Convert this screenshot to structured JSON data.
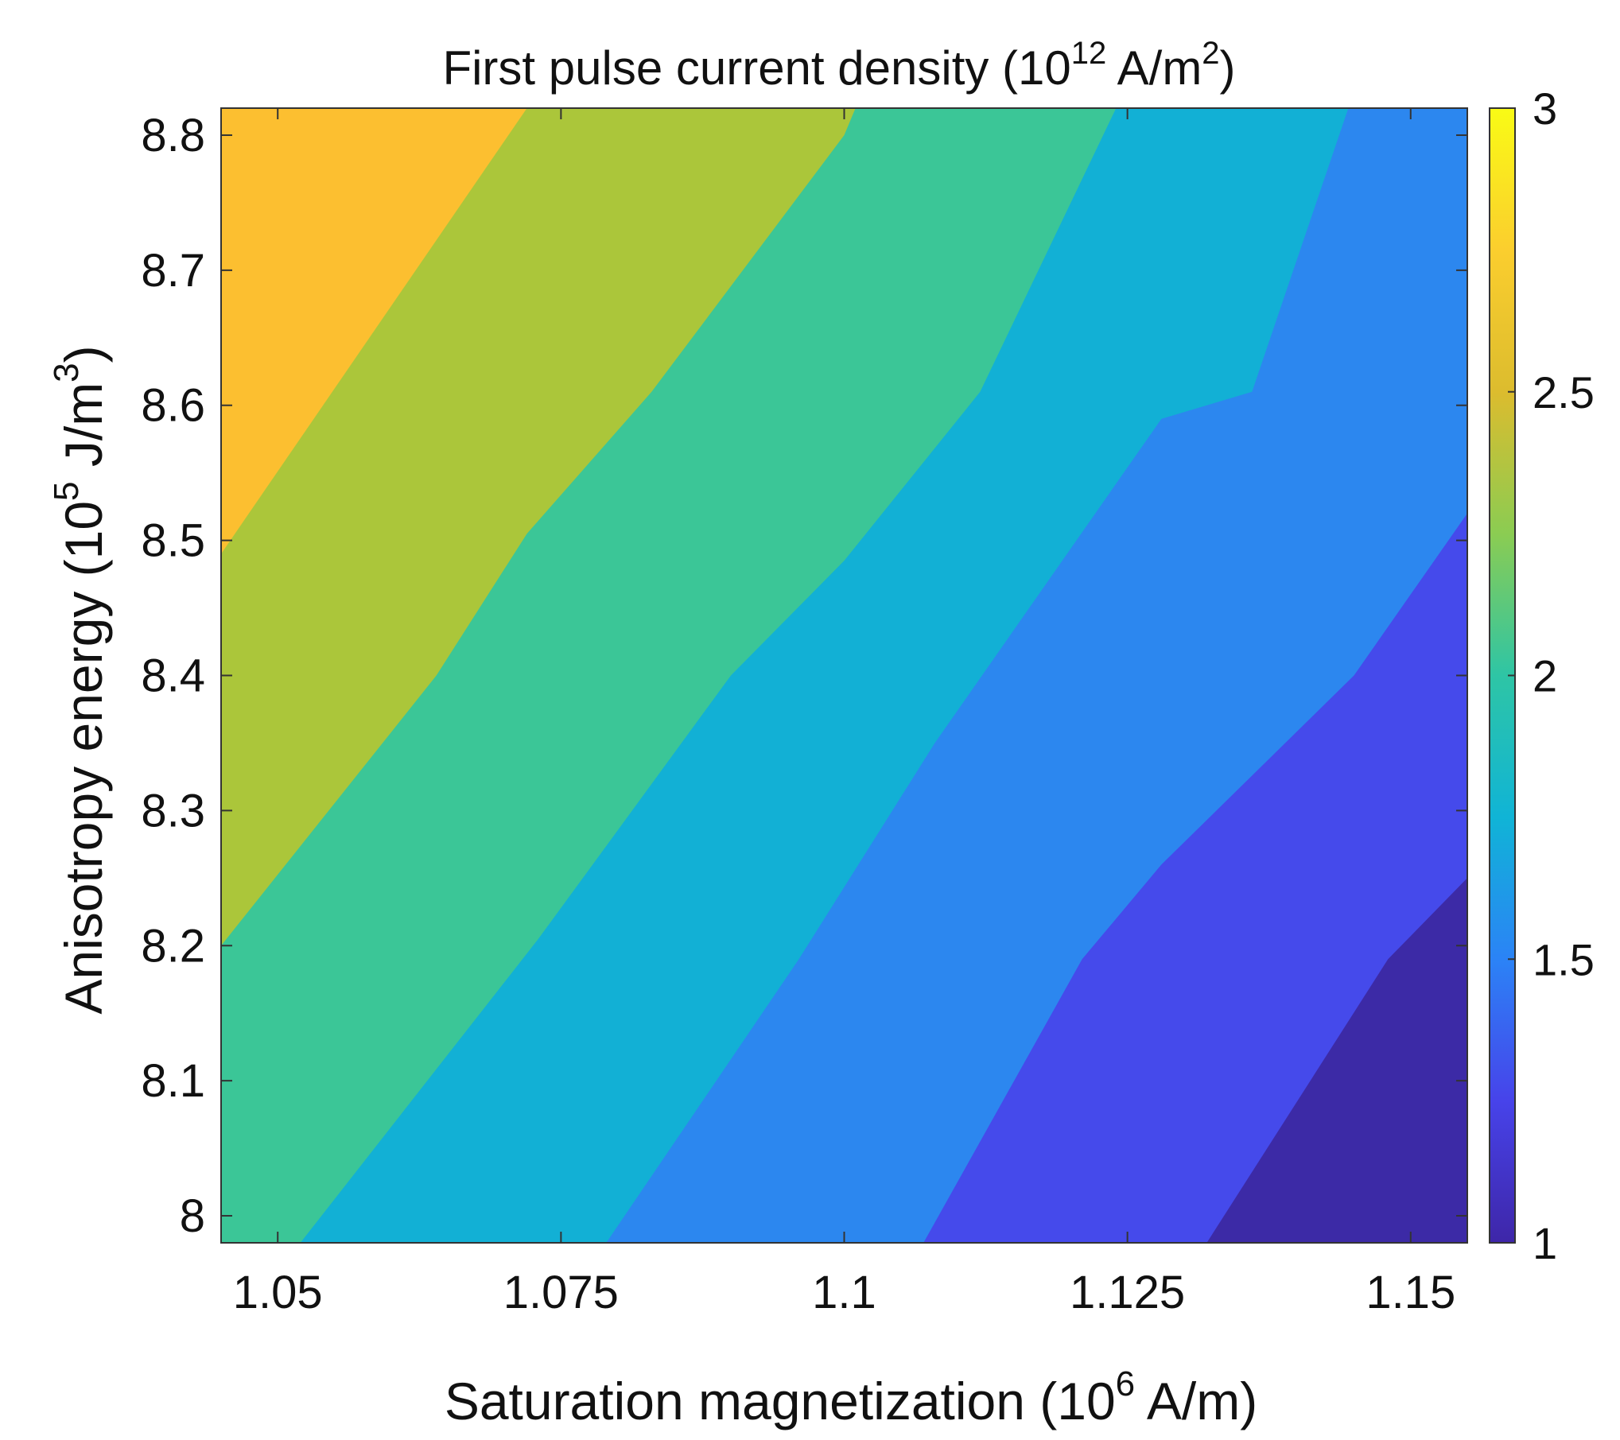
{
  "chart_data": {
    "type": "filled-contour",
    "title": {
      "main": "First pulse current density (10",
      "sup": "12",
      "mid": " A/m",
      "sup2": "2",
      "end": ")"
    },
    "xlabel": {
      "main": "Saturation magnetization (10",
      "sup": "6",
      "end": " A/m)"
    },
    "ylabel": {
      "main": "Anisotropy energy (10",
      "sup": "5",
      "mid": " J/m",
      "sup2": "3",
      "end": ")"
    },
    "xlim": [
      1.045,
      1.155
    ],
    "ylim": [
      7.98,
      8.82
    ],
    "x_ticks": [
      {
        "value": 1.05,
        "label": "1.05"
      },
      {
        "value": 1.075,
        "label": "1.075"
      },
      {
        "value": 1.1,
        "label": "1.1"
      },
      {
        "value": 1.125,
        "label": "1.125"
      },
      {
        "value": 1.15,
        "label": "1.15"
      }
    ],
    "y_ticks": [
      {
        "value": 8.0,
        "label": "8"
      },
      {
        "value": 8.1,
        "label": "8.1"
      },
      {
        "value": 8.2,
        "label": "8.2"
      },
      {
        "value": 8.3,
        "label": "8.3"
      },
      {
        "value": 8.4,
        "label": "8.4"
      },
      {
        "value": 8.5,
        "label": "8.5"
      },
      {
        "value": 8.6,
        "label": "8.6"
      },
      {
        "value": 8.7,
        "label": "8.7"
      },
      {
        "value": 8.8,
        "label": "8.8"
      }
    ],
    "colorbar": {
      "range": [
        1,
        3
      ],
      "ticks": [
        {
          "value": 1,
          "label": "1"
        },
        {
          "value": 1.5,
          "label": "1.5"
        },
        {
          "value": 2,
          "label": "2"
        },
        {
          "value": 2.5,
          "label": "2.5"
        },
        {
          "value": 3,
          "label": "3"
        }
      ],
      "colormap": [
        "#3e26a8",
        "#4743ea",
        "#2b83f6",
        "#10b4d6",
        "#2ec5a5",
        "#8bcc52",
        "#dcbc2e",
        "#fbce2e",
        "#f9fb15"
      ]
    },
    "levels": [
      {
        "range": [
          2.5,
          2.75
        ],
        "color": "#fcbf30"
      },
      {
        "range": [
          2.25,
          2.5
        ],
        "color": "#abc63a"
      },
      {
        "range": [
          2.0,
          2.25
        ],
        "color": "#3bc697"
      },
      {
        "range": [
          1.75,
          2.0
        ],
        "color": "#12b0d5"
      },
      {
        "range": [
          1.5,
          1.75
        ],
        "color": "#2c87ef"
      },
      {
        "range": [
          1.25,
          1.5
        ],
        "color": "#454aeb"
      },
      {
        "range": [
          1.0,
          1.25
        ],
        "color": "#3c2aa6"
      }
    ],
    "contour_lines": [
      {
        "level": 2.5,
        "points": [
          [
            1.045,
            8.49
          ],
          [
            1.072,
            8.82
          ]
        ]
      },
      {
        "level": 2.25,
        "points": [
          [
            1.045,
            8.2
          ],
          [
            1.064,
            8.4
          ],
          [
            1.072,
            8.505
          ],
          [
            1.083,
            8.61
          ],
          [
            1.1,
            8.8
          ],
          [
            1.101,
            8.82
          ]
        ]
      },
      {
        "level": 2.0,
        "points": [
          [
            1.052,
            7.98
          ],
          [
            1.073,
            8.205
          ],
          [
            1.09,
            8.4
          ],
          [
            1.1,
            8.485
          ],
          [
            1.112,
            8.61
          ],
          [
            1.124,
            8.82
          ]
        ]
      },
      {
        "level": 1.75,
        "points": [
          [
            1.079,
            7.98
          ],
          [
            1.096,
            8.19
          ],
          [
            1.108,
            8.35
          ],
          [
            1.128,
            8.59
          ],
          [
            1.136,
            8.61
          ],
          [
            1.1445,
            8.82
          ]
        ]
      },
      {
        "level": 1.5,
        "points": [
          [
            1.107,
            7.98
          ],
          [
            1.121,
            8.19
          ],
          [
            1.128,
            8.26
          ],
          [
            1.145,
            8.4
          ],
          [
            1.155,
            8.52
          ]
        ]
      },
      {
        "level": 1.25,
        "points": [
          [
            1.132,
            7.98
          ],
          [
            1.148,
            8.19
          ],
          [
            1.155,
            8.25
          ]
        ]
      }
    ]
  }
}
